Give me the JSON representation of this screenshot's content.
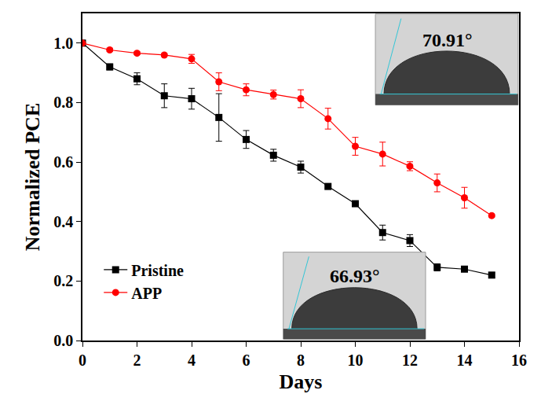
{
  "chart_data": {
    "type": "line",
    "x_label": "Days",
    "y_label": "Normalized PCE",
    "xlim": [
      0,
      16
    ],
    "xticks": [
      0,
      2,
      4,
      6,
      8,
      10,
      12,
      14,
      16
    ],
    "ylim": [
      0,
      1.1
    ],
    "yticks": [
      {
        "value": 0,
        "label": "0.0"
      },
      {
        "value": 0.2,
        "label": "0.2"
      },
      {
        "value": 0.4,
        "label": "0.4"
      },
      {
        "value": 0.6,
        "label": "0.6"
      },
      {
        "value": 0.8,
        "label": "0.8"
      },
      {
        "value": 1.0,
        "label": "1.0"
      }
    ],
    "grid": false,
    "legend": "lower left",
    "x": [
      0,
      1,
      2,
      3,
      4,
      5,
      6,
      7,
      8,
      9,
      10,
      11,
      12,
      13,
      14,
      15
    ],
    "series": [
      {
        "name": "Pristine",
        "color": "#000000",
        "marker": "square",
        "line_style": "solid",
        "values": [
          1.0,
          0.92,
          0.88,
          0.823,
          0.813,
          0.75,
          0.676,
          0.623,
          0.583,
          0.518,
          0.46,
          0.363,
          0.336,
          0.246,
          0.24,
          0.22
        ],
        "error": [
          0,
          0.01,
          0.02,
          0.04,
          0.035,
          0.08,
          0.03,
          0.02,
          0.02,
          0.005,
          0.005,
          0.025,
          0.02,
          0.012,
          0.008,
          0.008
        ]
      },
      {
        "name": "APP",
        "color": "#ff0000",
        "marker": "circle",
        "line_style": "solid",
        "values": [
          1.0,
          0.977,
          0.966,
          0.96,
          0.947,
          0.87,
          0.843,
          0.827,
          0.813,
          0.746,
          0.653,
          0.627,
          0.586,
          0.53,
          0.48,
          0.42
        ],
        "error": [
          0,
          0.005,
          0.005,
          0.005,
          0.015,
          0.03,
          0.02,
          0.015,
          0.03,
          0.035,
          0.03,
          0.04,
          0.015,
          0.03,
          0.035,
          0.005
        ]
      }
    ],
    "annotations": [
      {
        "text": "70.91°",
        "series": "APP"
      },
      {
        "text": "66.93°",
        "series": "Pristine"
      }
    ]
  }
}
